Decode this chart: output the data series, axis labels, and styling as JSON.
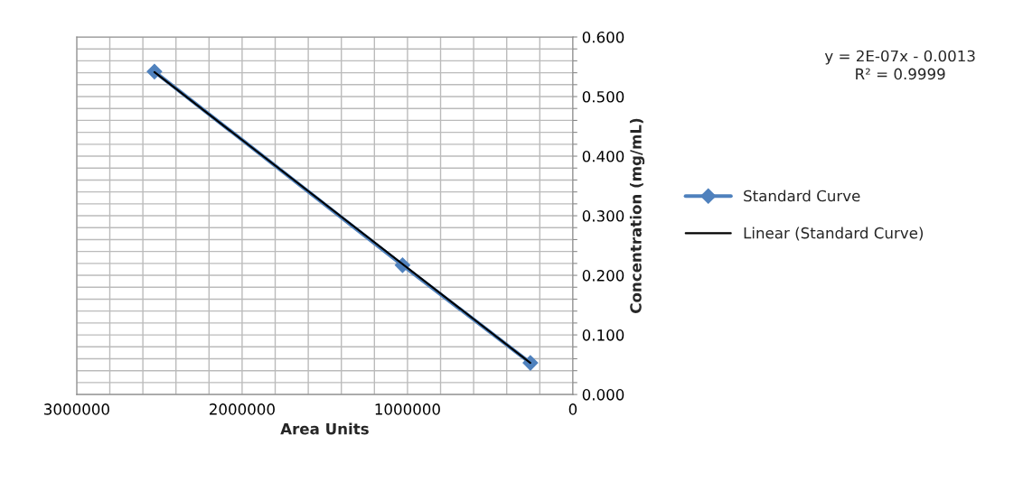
{
  "chart_data": {
    "type": "line",
    "xlabel": "Area Units",
    "ylabel": "Concentration (mg/mL)",
    "xlim": [
      3000000,
      0
    ],
    "xticks": [
      3000000,
      {
        "value": 2800000,
        "label": null
      },
      {
        "value": 2600000,
        "label": null
      },
      {
        "value": 2400000,
        "label": null
      },
      {
        "value": 2200000,
        "label": null
      },
      2000000,
      {
        "value": 1800000,
        "label": null
      },
      {
        "value": 1600000,
        "label": null
      },
      {
        "value": 1400000,
        "label": null
      },
      {
        "value": 1200000,
        "label": null
      },
      1000000,
      {
        "value": 800000,
        "label": null
      },
      {
        "value": 600000,
        "label": null
      },
      {
        "value": 400000,
        "label": null
      },
      {
        "value": 200000,
        "label": null
      },
      0
    ],
    "ylim": [
      0,
      0.6
    ],
    "yticks": [
      {
        "value": 0,
        "label": "0.000"
      },
      {
        "value": 0.02,
        "label": null
      },
      {
        "value": 0.04,
        "label": null
      },
      {
        "value": 0.06,
        "label": null
      },
      {
        "value": 0.08,
        "label": null
      },
      {
        "value": 0.1,
        "label": "0.100"
      },
      {
        "value": 0.12,
        "label": null
      },
      {
        "value": 0.14,
        "label": null
      },
      {
        "value": 0.16,
        "label": null
      },
      {
        "value": 0.18,
        "label": null
      },
      {
        "value": 0.2,
        "label": "0.200"
      },
      {
        "value": 0.22,
        "label": null
      },
      {
        "value": 0.24,
        "label": null
      },
      {
        "value": 0.26,
        "label": null
      },
      {
        "value": 0.28,
        "label": null
      },
      {
        "value": 0.3,
        "label": "0.300"
      },
      {
        "value": 0.32,
        "label": null
      },
      {
        "value": 0.34,
        "label": null
      },
      {
        "value": 0.36,
        "label": null
      },
      {
        "value": 0.38,
        "label": null
      },
      {
        "value": 0.4,
        "label": "0.400"
      },
      {
        "value": 0.42,
        "label": null
      },
      {
        "value": 0.44,
        "label": null
      },
      {
        "value": 0.46,
        "label": null
      },
      {
        "value": 0.48,
        "label": null
      },
      {
        "value": 0.5,
        "label": "0.500"
      },
      {
        "value": 0.52,
        "label": null
      },
      {
        "value": 0.54,
        "label": null
      },
      {
        "value": 0.56,
        "label": null
      },
      {
        "value": 0.58,
        "label": null
      },
      {
        "value": 0.6,
        "label": "0.600"
      }
    ],
    "grid": true,
    "legend": "right",
    "series": [
      {
        "name": "Standard Curve",
        "color": "#4f81bd",
        "marker": "diamond",
        "line_style": "solid",
        "x": [
          2530000,
          1030000,
          257000
        ],
        "values": [
          0.542,
          0.217,
          0.053
        ]
      },
      {
        "name": "Linear (Standard Curve)",
        "color": "#000000",
        "marker": "none",
        "line_style": "solid",
        "x": [
          2530000,
          257000
        ],
        "values": [
          0.541,
          0.053
        ]
      }
    ],
    "annotations": [
      "y = 2E-07x - 0.0013\nR² = 0.9999"
    ]
  }
}
